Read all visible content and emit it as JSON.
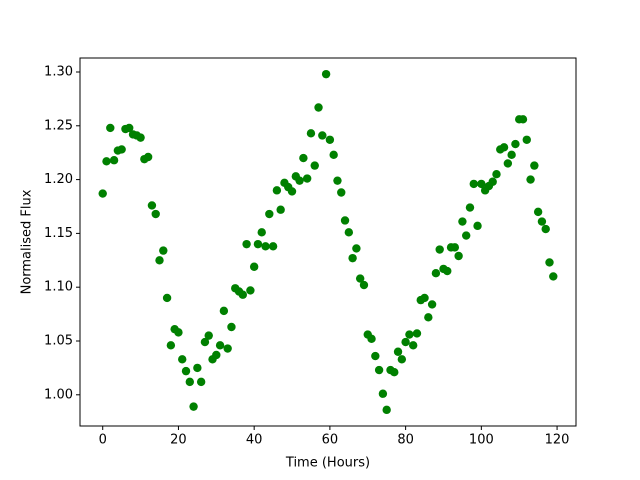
{
  "chart_data": {
    "type": "scatter",
    "xlabel": "Time (Hours)",
    "ylabel": "Normalised Flux",
    "xlim": [
      -6,
      125
    ],
    "ylim": [
      0.971,
      1.313
    ],
    "xticks": [
      0,
      20,
      40,
      60,
      80,
      100,
      120
    ],
    "yticks": [
      {
        "value": 1.0,
        "label": "1.00"
      },
      1.05,
      {
        "value": 1.1,
        "label": "1.10"
      },
      1.15,
      {
        "value": 1.2,
        "label": "1.20"
      },
      1.25,
      {
        "value": 1.3,
        "label": "1.30"
      }
    ],
    "grid": false,
    "color": "#008000",
    "x": [
      0,
      1,
      2,
      3,
      4,
      5,
      6,
      7,
      8,
      9,
      10,
      11,
      12,
      13,
      14,
      15,
      16,
      17,
      18,
      19,
      20,
      21,
      22,
      23,
      24,
      25,
      26,
      27,
      28,
      29,
      30,
      31,
      32,
      33,
      34,
      35,
      36,
      37,
      38,
      39,
      40,
      41,
      42,
      43,
      44,
      45,
      46,
      47,
      48,
      49,
      50,
      51,
      52,
      53,
      54,
      55,
      56,
      57,
      58,
      59,
      60,
      61,
      62,
      63,
      64,
      65,
      66,
      67,
      68,
      69,
      70,
      71,
      72,
      73,
      74,
      75,
      76,
      77,
      78,
      79,
      80,
      81,
      82,
      83,
      84,
      85,
      86,
      87,
      88,
      89,
      90,
      91,
      92,
      93,
      94,
      95,
      96,
      97,
      98,
      99,
      100,
      101,
      102,
      103,
      104,
      105,
      106,
      107,
      108,
      109,
      110,
      111,
      112,
      113,
      114,
      115,
      116,
      117,
      118,
      119
    ],
    "values": [
      1.187,
      1.217,
      1.248,
      1.218,
      1.227,
      1.228,
      1.247,
      1.248,
      1.242,
      1.241,
      1.239,
      1.219,
      1.221,
      1.176,
      1.168,
      1.125,
      1.134,
      1.09,
      1.046,
      1.061,
      1.058,
      1.033,
      1.022,
      1.012,
      0.989,
      1.025,
      1.012,
      1.049,
      1.055,
      1.033,
      1.037,
      1.046,
      1.078,
      1.043,
      1.063,
      1.099,
      1.096,
      1.093,
      1.14,
      1.097,
      1.119,
      1.14,
      1.151,
      1.138,
      1.168,
      1.138,
      1.19,
      1.172,
      1.197,
      1.193,
      1.189,
      1.203,
      1.199,
      1.22,
      1.201,
      1.243,
      1.213,
      1.267,
      1.241,
      1.298,
      1.237,
      1.223,
      1.199,
      1.188,
      1.162,
      1.151,
      1.127,
      1.136,
      1.108,
      1.102,
      1.056,
      1.052,
      1.036,
      1.023,
      1.001,
      0.986,
      1.023,
      1.021,
      1.04,
      1.033,
      1.049,
      1.056,
      1.046,
      1.057,
      1.088,
      1.09,
      1.072,
      1.084,
      1.113,
      1.135,
      1.117,
      1.115,
      1.137,
      1.137,
      1.129,
      1.161,
      1.148,
      1.174,
      1.196,
      1.157,
      1.196,
      1.19,
      1.194,
      1.198,
      1.205,
      1.228,
      1.23,
      1.215,
      1.223,
      1.233,
      1.256,
      1.256,
      1.237,
      1.2,
      1.213,
      1.17,
      1.161,
      1.154,
      1.123,
      1.11
    ]
  }
}
